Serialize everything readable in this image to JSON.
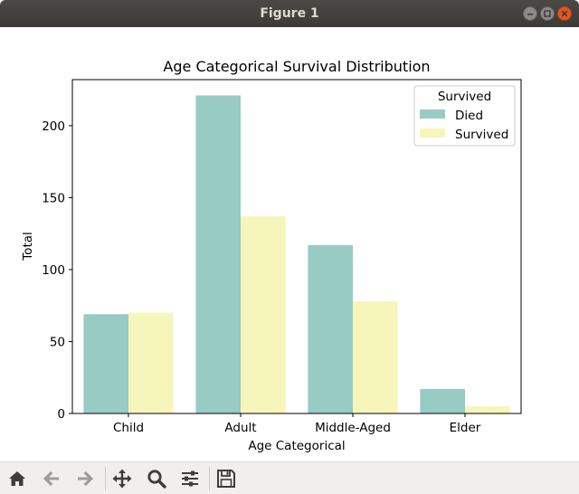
{
  "window": {
    "title": "Figure 1"
  },
  "toolbar": {
    "buttons": [
      {
        "name": "home-icon"
      },
      {
        "name": "back-arrow-icon"
      },
      {
        "name": "forward-arrow-icon"
      },
      {
        "name": "pan-icon"
      },
      {
        "name": "zoom-icon"
      },
      {
        "name": "configure-subplots-icon"
      },
      {
        "name": "save-icon"
      }
    ]
  },
  "colors": {
    "died": "#98cbc3",
    "survived": "#f6f6bb",
    "close_button": "#e95420",
    "titlebar": "#3c3b37"
  },
  "chart_data": {
    "type": "bar",
    "title": "Age Categorical Survival Distribution",
    "xlabel": "Age Categorical",
    "ylabel": "Total",
    "categories": [
      "Child",
      "Adult",
      "Middle-Aged",
      "Elder"
    ],
    "series": [
      {
        "name": "Died",
        "values": [
          69,
          221,
          117,
          17
        ]
      },
      {
        "name": "Survived",
        "values": [
          70,
          137,
          78,
          5
        ]
      }
    ],
    "ylim": [
      0,
      232
    ],
    "yticks": [
      "0",
      "50",
      "100",
      "150",
      "200"
    ],
    "legend_title": "Survived",
    "legend_position": "top-right",
    "grid": false
  }
}
